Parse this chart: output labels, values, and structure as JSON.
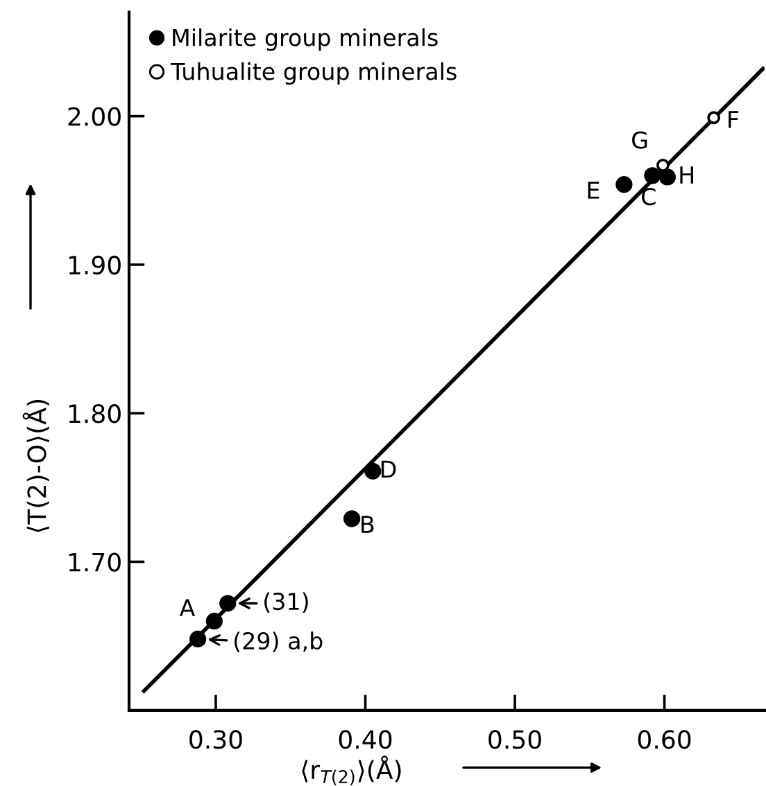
{
  "chart_data": {
    "type": "scatter",
    "xlabel": "⟨r$_{T(2)}$⟩(Å)",
    "ylabel": "⟨T(2)-O⟩(Å)",
    "xlim": [
      0.242,
      0.667
    ],
    "ylim": [
      1.6,
      2.07
    ],
    "xticks": [
      {
        "value": 0.3,
        "label": "0.30"
      },
      {
        "value": 0.4,
        "label": "0.40"
      },
      {
        "value": 0.5,
        "label": "0.50"
      },
      {
        "value": 0.6,
        "label": "0.60"
      }
    ],
    "yticks": [
      {
        "value": 1.7,
        "label": "1.70"
      },
      {
        "value": 1.8,
        "label": "1.80"
      },
      {
        "value": 1.9,
        "label": "1.90"
      },
      {
        "value": 2.0,
        "label": "2.00"
      }
    ],
    "grid": false,
    "legend": "top left",
    "series": [
      {
        "name": "Milarite group minerals",
        "color": "#000000",
        "marker": "circle",
        "x": [
          0.288,
          0.299,
          0.308,
          0.391,
          0.405,
          0.573,
          0.592,
          0.602
        ],
        "values": [
          1.648,
          1.66,
          1.672,
          1.729,
          1.761,
          1.954,
          1.96,
          1.959
        ]
      },
      {
        "name": "Tuhualite group minerals",
        "color": "#ffffff",
        "marker": "circle",
        "x": [
          0.599,
          0.633
        ],
        "values": [
          1.967,
          1.999
        ]
      },
      {
        "type": "line",
        "color": "#000000",
        "marker": "none",
        "line_style": "solid",
        "x": [
          0.252,
          0.666
        ],
        "values": [
          1.613,
          2.032
        ]
      }
    ],
    "annotations": [
      {
        "text": "(29) a,b",
        "x": 0.288,
        "y": 1.648
      },
      {
        "text": "A",
        "x": 0.299,
        "y": 1.66
      },
      {
        "text": "(31)",
        "x": 0.308,
        "y": 1.672
      },
      {
        "text": "B",
        "x": 0.391,
        "y": 1.729
      },
      {
        "text": "D",
        "x": 0.405,
        "y": 1.761
      },
      {
        "text": "E",
        "x": 0.573,
        "y": 1.954
      },
      {
        "text": "C",
        "x": 0.592,
        "y": 1.96
      },
      {
        "text": "H",
        "x": 0.602,
        "y": 1.959
      },
      {
        "text": "G",
        "x": 0.599,
        "y": 1.967
      },
      {
        "text": "F",
        "x": 0.633,
        "y": 1.999
      }
    ]
  }
}
